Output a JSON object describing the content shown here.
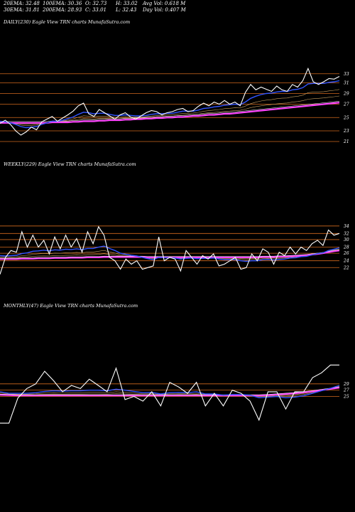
{
  "header": {
    "ema20": "20EMA: 32.48",
    "ema100": "100EMA: 30.36",
    "open": "O: 32.73",
    "high": "H: 33.02",
    "avgvol": "Avg Vol: 0.618  M",
    "ema30": "30EMA: 31.81",
    "ema200": "200EMA: 28.93",
    "close": "C: 33.01",
    "low": "L: 32.43",
    "dayvol": "Day Vol: 0.407 M"
  },
  "chart_data": [
    {
      "type": "line",
      "title": "DAILY(230) Eagle  View  TRN  charts MunafaSutra.com",
      "yticks": [
        "33",
        "31",
        "29",
        "27",
        "25",
        "23",
        "21"
      ],
      "ylim": [
        20,
        36
      ],
      "hlines": [
        33.5,
        31.8,
        29.8,
        27.8,
        25.3,
        22.8,
        20.8
      ],
      "colors": {
        "price": "#ffffff",
        "fast": "#3355ff",
        "slow": "#ff44ff",
        "grid": "#d2691e",
        "ema": "#c8a060"
      },
      "series": [
        {
          "id": "price",
          "values": [
            24.2,
            24.8,
            24.0,
            22.8,
            22.0,
            22.6,
            23.5,
            23.0,
            24.5,
            25.0,
            25.5,
            24.6,
            25.2,
            25.8,
            26.5,
            27.5,
            28.0,
            26.0,
            25.5,
            26.8,
            26.2,
            25.6,
            25.0,
            25.8,
            26.2,
            25.4,
            25.0,
            25.6,
            26.2,
            26.6,
            26.4,
            25.8,
            26.2,
            26.4,
            26.8,
            27.0,
            26.4,
            26.6,
            27.4,
            28.0,
            27.5,
            28.2,
            27.8,
            28.5,
            27.8,
            28.2,
            27.5,
            30.0,
            31.5,
            30.5,
            31.0,
            30.6,
            30.2,
            31.2,
            30.5,
            30.2,
            31.5,
            31.0,
            32.2,
            34.5,
            32.0,
            31.5,
            32.0,
            32.6,
            32.5,
            33.0
          ]
        },
        {
          "id": "fast",
          "values": [
            24.6,
            24.5,
            24.3,
            24.0,
            23.6,
            23.4,
            23.5,
            23.6,
            24.0,
            24.3,
            24.6,
            24.6,
            24.8,
            25.1,
            25.4,
            25.9,
            26.3,
            26.2,
            26.0,
            26.1,
            26.1,
            25.9,
            25.7,
            25.7,
            25.8,
            25.7,
            25.6,
            25.6,
            25.7,
            25.9,
            26.0,
            26.0,
            26.1,
            26.1,
            26.3,
            26.5,
            26.5,
            26.5,
            26.7,
            27.0,
            27.1,
            27.3,
            27.4,
            27.6,
            27.7,
            27.8,
            27.7,
            28.2,
            28.9,
            29.3,
            29.6,
            29.8,
            29.9,
            30.1,
            30.2,
            30.2,
            30.5,
            30.6,
            30.9,
            31.6,
            31.7,
            31.7,
            31.7,
            31.9,
            32.0,
            32.2
          ]
        },
        {
          "id": "slow",
          "values": [
            24.3,
            24.3,
            24.3,
            24.3,
            24.3,
            24.3,
            24.3,
            24.3,
            24.3,
            24.3,
            24.4,
            24.4,
            24.4,
            24.4,
            24.5,
            24.5,
            24.6,
            24.6,
            24.6,
            24.7,
            24.7,
            24.8,
            24.8,
            24.8,
            24.9,
            24.9,
            25.0,
            25.0,
            25.1,
            25.1,
            25.2,
            25.2,
            25.3,
            25.3,
            25.4,
            25.4,
            25.5,
            25.6,
            25.6,
            25.7,
            25.8,
            25.8,
            25.9,
            26.0,
            26.0,
            26.1,
            26.2,
            26.3,
            26.4,
            26.5,
            26.6,
            26.7,
            26.8,
            26.9,
            27.0,
            27.1,
            27.2,
            27.3,
            27.4,
            27.5,
            27.6,
            27.7,
            27.8,
            27.9,
            28.0,
            28.1
          ]
        }
      ]
    },
    {
      "type": "line",
      "title": "WEEKLY(229) Eagle  View  TRN  charts MunafaSutra.com",
      "yticks": [
        "34",
        "32",
        "30",
        "28",
        "26",
        "24",
        "22"
      ],
      "ylim": [
        16,
        40
      ],
      "hlines": [
        34.2,
        32.0,
        30.2,
        28.0,
        26.2,
        24.0,
        22.0
      ],
      "colors": {
        "price": "#ffffff",
        "fast": "#3355ff",
        "slow": "#ff44ff",
        "grid": "#d2691e",
        "ema": "#c8a060"
      },
      "series": [
        {
          "id": "price",
          "values": [
            20.0,
            25.0,
            27.0,
            26.5,
            32.5,
            28.0,
            31.5,
            28.0,
            30.0,
            26.0,
            31.0,
            27.5,
            31.5,
            28.0,
            30.5,
            26.5,
            32.5,
            29.0,
            34.0,
            31.5,
            25.0,
            24.0,
            21.5,
            24.5,
            23.0,
            24.0,
            21.5,
            22.0,
            22.5,
            31.0,
            24.0,
            25.0,
            24.5,
            21.0,
            27.0,
            25.0,
            23.0,
            25.5,
            24.5,
            26.0,
            22.5,
            23.0,
            24.0,
            25.0,
            21.5,
            22.0,
            26.0,
            24.0,
            27.5,
            26.5,
            23.0,
            26.5,
            25.5,
            28.0,
            26.0,
            28.0,
            27.0,
            29.0,
            30.0,
            28.5,
            33.0,
            31.5,
            32.0
          ]
        },
        {
          "id": "fast",
          "values": [
            25.5,
            25.4,
            25.5,
            25.6,
            26.1,
            26.3,
            26.8,
            26.9,
            27.1,
            26.9,
            27.2,
            27.1,
            27.4,
            27.3,
            27.5,
            27.3,
            27.6,
            27.6,
            28.0,
            28.3,
            27.6,
            27.0,
            26.2,
            25.9,
            25.6,
            25.4,
            25.0,
            24.6,
            24.3,
            25.0,
            24.9,
            24.9,
            24.8,
            24.5,
            24.7,
            24.8,
            24.6,
            24.7,
            24.7,
            24.8,
            24.5,
            24.3,
            24.3,
            24.3,
            24.0,
            23.8,
            24.0,
            24.0,
            24.3,
            24.4,
            24.2,
            24.4,
            24.5,
            24.8,
            24.9,
            25.2,
            25.3,
            25.7,
            26.1,
            26.3,
            27.0,
            27.4,
            27.8
          ]
        },
        {
          "id": "slow",
          "values": [
            24.5,
            24.5,
            24.5,
            24.5,
            24.6,
            24.6,
            24.6,
            24.7,
            24.7,
            24.7,
            24.8,
            24.8,
            24.8,
            24.9,
            24.9,
            24.9,
            25.0,
            25.0,
            25.0,
            25.1,
            25.1,
            25.1,
            25.1,
            25.1,
            25.1,
            25.1,
            25.1,
            25.0,
            25.0,
            25.0,
            25.0,
            25.0,
            25.0,
            25.0,
            25.0,
            25.0,
            25.0,
            25.0,
            25.0,
            25.0,
            25.0,
            25.0,
            25.0,
            25.0,
            25.0,
            25.0,
            25.0,
            25.0,
            25.1,
            25.1,
            25.1,
            25.2,
            25.2,
            25.3,
            25.4,
            25.5,
            25.6,
            25.8,
            26.0,
            26.2,
            26.5,
            26.8,
            27.0
          ]
        }
      ]
    },
    {
      "type": "line",
      "title": "MONTHLY(47) Eagle  View  TRN  charts MunafaSutra.com",
      "yticks": [
        "29",
        "27",
        "25"
      ],
      "ylim": [
        12,
        38
      ],
      "hlines": [
        29.0,
        27.0,
        25.0
      ],
      "colors": {
        "price": "#ffffff",
        "fast": "#3355ff",
        "slow": "#ff44ff",
        "grid": "#d2691e",
        "ema": "#c8a060"
      },
      "series": [
        {
          "id": "price",
          "values": [
            16.5,
            16.5,
            24.5,
            27.5,
            29.0,
            33.0,
            30.0,
            26.5,
            28.5,
            27.5,
            30.5,
            28.5,
            26.5,
            34.0,
            24.0,
            25.0,
            23.5,
            26.5,
            22.0,
            29.5,
            28.0,
            26.0,
            29.5,
            22.0,
            26.0,
            22.0,
            27.0,
            26.0,
            23.5,
            17.5,
            26.5,
            26.5,
            21.0,
            26.5,
            26.5,
            31.0,
            32.5,
            35.0,
            35.0
          ]
        },
        {
          "id": "fast",
          "values": [
            26.5,
            26.0,
            26.0,
            26.0,
            26.2,
            26.6,
            26.8,
            26.7,
            26.8,
            26.8,
            27.0,
            27.0,
            26.8,
            27.3,
            27.0,
            26.6,
            26.2,
            26.3,
            25.8,
            26.2,
            26.3,
            26.2,
            26.5,
            25.8,
            25.8,
            25.4,
            25.6,
            25.6,
            25.4,
            24.6,
            24.8,
            25.0,
            24.6,
            24.8,
            25.2,
            26.0,
            26.8,
            27.6,
            28.5
          ]
        },
        {
          "id": "slow",
          "values": [
            25.5,
            25.4,
            25.3,
            25.3,
            25.3,
            25.3,
            25.3,
            25.3,
            25.3,
            25.3,
            25.3,
            25.3,
            25.3,
            25.3,
            25.3,
            25.3,
            25.3,
            25.3,
            25.3,
            25.3,
            25.3,
            25.3,
            25.3,
            25.3,
            25.3,
            25.3,
            25.3,
            25.3,
            25.3,
            25.3,
            25.4,
            25.6,
            25.8,
            26.0,
            26.3,
            26.6,
            27.0,
            27.4,
            27.8
          ]
        }
      ]
    }
  ]
}
